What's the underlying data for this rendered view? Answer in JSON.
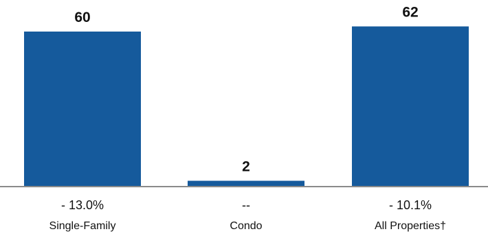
{
  "chart_data": {
    "type": "bar",
    "categories": [
      "Single-Family",
      "Condo",
      "All Properties†"
    ],
    "values": [
      60,
      2,
      62
    ],
    "value_labels": [
      "60",
      "2",
      "62"
    ],
    "change_labels": [
      "- 13.0%",
      "--",
      "- 10.1%"
    ],
    "ylim": [
      0,
      70
    ],
    "grid": false,
    "colors": {
      "bar": "#155a9c",
      "baseline": "#8a8a8a",
      "text": "#111111"
    }
  }
}
